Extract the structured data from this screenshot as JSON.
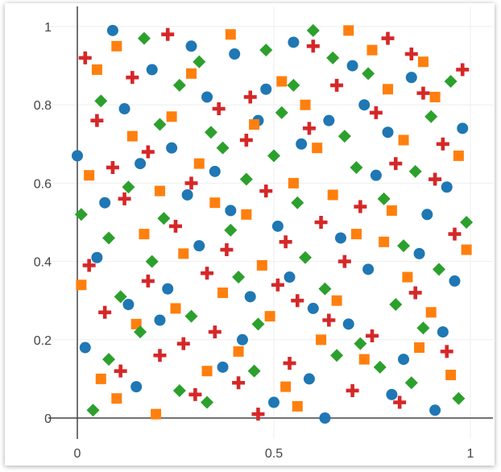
{
  "chart_data": {
    "type": "scatter",
    "title": "",
    "xlabel": "",
    "ylabel": "",
    "xlim": [
      0,
      1
    ],
    "ylim": [
      0,
      1
    ],
    "x_ticks": [
      "0",
      "0.5",
      "1"
    ],
    "y_ticks": [
      "0",
      "0.2",
      "0.4",
      "0.6",
      "0.8",
      "1"
    ],
    "grid": true,
    "legend": "none",
    "series": [
      {
        "marker": "circle",
        "color": "#1f77b4",
        "points": [
          [
            0.0,
            0.67
          ],
          [
            0.02,
            0.18
          ],
          [
            0.05,
            0.41
          ],
          [
            0.07,
            0.55
          ],
          [
            0.09,
            0.99
          ],
          [
            0.12,
            0.79
          ],
          [
            0.13,
            0.29
          ],
          [
            0.15,
            0.08
          ],
          [
            0.16,
            0.65
          ],
          [
            0.19,
            0.89
          ],
          [
            0.21,
            0.25
          ],
          [
            0.23,
            0.33
          ],
          [
            0.24,
            0.69
          ],
          [
            0.28,
            0.57
          ],
          [
            0.29,
            0.95
          ],
          [
            0.31,
            0.44
          ],
          [
            0.33,
            0.82
          ],
          [
            0.35,
            0.63
          ],
          [
            0.37,
            0.13
          ],
          [
            0.39,
            0.53
          ],
          [
            0.4,
            0.93
          ],
          [
            0.42,
            0.2
          ],
          [
            0.44,
            0.31
          ],
          [
            0.46,
            0.76
          ],
          [
            0.48,
            0.84
          ],
          [
            0.5,
            0.04
          ],
          [
            0.51,
            0.49
          ],
          [
            0.54,
            0.36
          ],
          [
            0.55,
            0.96
          ],
          [
            0.57,
            0.7
          ],
          [
            0.59,
            0.1
          ],
          [
            0.6,
            0.28
          ],
          [
            0.63,
            0.0
          ],
          [
            0.64,
            0.76
          ],
          [
            0.67,
            0.46
          ],
          [
            0.69,
            0.24
          ],
          [
            0.7,
            0.9
          ],
          [
            0.73,
            0.8
          ],
          [
            0.74,
            0.38
          ],
          [
            0.76,
            0.62
          ],
          [
            0.79,
            0.73
          ],
          [
            0.8,
            0.06
          ],
          [
            0.83,
            0.15
          ],
          [
            0.85,
            0.87
          ],
          [
            0.87,
            0.42
          ],
          [
            0.89,
            0.52
          ],
          [
            0.91,
            0.02
          ],
          [
            0.93,
            0.22
          ],
          [
            0.94,
            0.59
          ],
          [
            0.96,
            0.35
          ],
          [
            0.98,
            0.74
          ]
        ]
      },
      {
        "marker": "square",
        "color": "#ff7f0e",
        "points": [
          [
            0.01,
            0.34
          ],
          [
            0.03,
            0.62
          ],
          [
            0.05,
            0.89
          ],
          [
            0.06,
            0.1
          ],
          [
            0.1,
            0.05
          ],
          [
            0.1,
            0.95
          ],
          [
            0.14,
            0.72
          ],
          [
            0.15,
            0.24
          ],
          [
            0.17,
            0.47
          ],
          [
            0.2,
            0.01
          ],
          [
            0.21,
            0.58
          ],
          [
            0.24,
            0.77
          ],
          [
            0.25,
            0.28
          ],
          [
            0.27,
            0.42
          ],
          [
            0.29,
            0.88
          ],
          [
            0.31,
            0.65
          ],
          [
            0.33,
            0.12
          ],
          [
            0.35,
            0.55
          ],
          [
            0.37,
            0.32
          ],
          [
            0.39,
            0.98
          ],
          [
            0.41,
            0.17
          ],
          [
            0.43,
            0.52
          ],
          [
            0.45,
            0.75
          ],
          [
            0.47,
            0.39
          ],
          [
            0.49,
            0.26
          ],
          [
            0.52,
            0.86
          ],
          [
            0.53,
            0.08
          ],
          [
            0.55,
            0.6
          ],
          [
            0.56,
            0.03
          ],
          [
            0.58,
            0.8
          ],
          [
            0.61,
            0.69
          ],
          [
            0.62,
            0.2
          ],
          [
            0.65,
            0.57
          ],
          [
            0.66,
            0.3
          ],
          [
            0.69,
            0.99
          ],
          [
            0.71,
            0.47
          ],
          [
            0.73,
            0.15
          ],
          [
            0.75,
            0.94
          ],
          [
            0.78,
            0.45
          ],
          [
            0.79,
            0.84
          ],
          [
            0.8,
            0.53
          ],
          [
            0.83,
            0.71
          ],
          [
            0.84,
            0.36
          ],
          [
            0.87,
            0.18
          ],
          [
            0.88,
            0.91
          ],
          [
            0.9,
            0.27
          ],
          [
            0.91,
            0.82
          ],
          [
            0.95,
            0.11
          ],
          [
            0.97,
            0.67
          ],
          [
            0.99,
            0.43
          ]
        ]
      },
      {
        "marker": "diamond",
        "color": "#2ca02c",
        "points": [
          [
            0.01,
            0.52
          ],
          [
            0.04,
            0.02
          ],
          [
            0.06,
            0.81
          ],
          [
            0.08,
            0.46
          ],
          [
            0.08,
            0.15
          ],
          [
            0.11,
            0.31
          ],
          [
            0.13,
            0.59
          ],
          [
            0.16,
            0.22
          ],
          [
            0.17,
            0.97
          ],
          [
            0.19,
            0.4
          ],
          [
            0.21,
            0.75
          ],
          [
            0.22,
            0.51
          ],
          [
            0.26,
            0.07
          ],
          [
            0.26,
            0.85
          ],
          [
            0.29,
            0.26
          ],
          [
            0.31,
            0.91
          ],
          [
            0.33,
            0.04
          ],
          [
            0.34,
            0.73
          ],
          [
            0.37,
            0.69
          ],
          [
            0.39,
            0.48
          ],
          [
            0.41,
            0.36
          ],
          [
            0.43,
            0.61
          ],
          [
            0.45,
            0.12
          ],
          [
            0.46,
            0.24
          ],
          [
            0.48,
            0.94
          ],
          [
            0.5,
            0.67
          ],
          [
            0.52,
            0.78
          ],
          [
            0.55,
            0.85
          ],
          [
            0.56,
            0.55
          ],
          [
            0.58,
            0.41
          ],
          [
            0.6,
            0.99
          ],
          [
            0.63,
            0.33
          ],
          [
            0.65,
            0.92
          ],
          [
            0.66,
            0.16
          ],
          [
            0.68,
            0.72
          ],
          [
            0.71,
            0.64
          ],
          [
            0.72,
            0.19
          ],
          [
            0.74,
            0.88
          ],
          [
            0.77,
            0.13
          ],
          [
            0.78,
            0.56
          ],
          [
            0.81,
            0.29
          ],
          [
            0.83,
            0.44
          ],
          [
            0.85,
            0.09
          ],
          [
            0.86,
            0.63
          ],
          [
            0.88,
            0.23
          ],
          [
            0.9,
            0.77
          ],
          [
            0.92,
            0.38
          ],
          [
            0.95,
            0.86
          ],
          [
            0.97,
            0.05
          ],
          [
            0.99,
            0.5
          ]
        ]
      },
      {
        "marker": "cross",
        "color": "#d62728",
        "points": [
          [
            0.02,
            0.92
          ],
          [
            0.03,
            0.39
          ],
          [
            0.05,
            0.76
          ],
          [
            0.07,
            0.27
          ],
          [
            0.09,
            0.64
          ],
          [
            0.11,
            0.12
          ],
          [
            0.12,
            0.56
          ],
          [
            0.14,
            0.87
          ],
          [
            0.18,
            0.35
          ],
          [
            0.18,
            0.68
          ],
          [
            0.21,
            0.16
          ],
          [
            0.23,
            0.98
          ],
          [
            0.25,
            0.49
          ],
          [
            0.27,
            0.19
          ],
          [
            0.29,
            0.6
          ],
          [
            0.3,
            0.06
          ],
          [
            0.33,
            0.37
          ],
          [
            0.35,
            0.22
          ],
          [
            0.36,
            0.79
          ],
          [
            0.38,
            0.43
          ],
          [
            0.41,
            0.09
          ],
          [
            0.43,
            0.71
          ],
          [
            0.44,
            0.82
          ],
          [
            0.46,
            0.01
          ],
          [
            0.48,
            0.58
          ],
          [
            0.51,
            0.34
          ],
          [
            0.53,
            0.45
          ],
          [
            0.54,
            0.14
          ],
          [
            0.56,
            0.3
          ],
          [
            0.59,
            0.74
          ],
          [
            0.6,
            0.95
          ],
          [
            0.62,
            0.5
          ],
          [
            0.64,
            0.25
          ],
          [
            0.66,
            0.85
          ],
          [
            0.68,
            0.4
          ],
          [
            0.7,
            0.07
          ],
          [
            0.72,
            0.54
          ],
          [
            0.75,
            0.21
          ],
          [
            0.76,
            0.78
          ],
          [
            0.79,
            0.97
          ],
          [
            0.81,
            0.65
          ],
          [
            0.82,
            0.04
          ],
          [
            0.85,
            0.93
          ],
          [
            0.86,
            0.32
          ],
          [
            0.88,
            0.83
          ],
          [
            0.91,
            0.61
          ],
          [
            0.93,
            0.7
          ],
          [
            0.94,
            0.17
          ],
          [
            0.96,
            0.47
          ],
          [
            0.98,
            0.89
          ]
        ]
      }
    ]
  }
}
